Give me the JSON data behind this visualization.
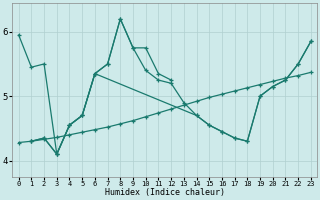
{
  "xlabel": "Humidex (Indice chaleur)",
  "bg_color": "#ceeaea",
  "line_color": "#1a7a6e",
  "grid_color": "#b0d0d0",
  "xlim": [
    -0.5,
    23.5
  ],
  "ylim": [
    3.75,
    6.45
  ],
  "yticks": [
    4,
    5,
    6
  ],
  "xticks": [
    0,
    1,
    2,
    3,
    4,
    5,
    6,
    7,
    8,
    9,
    10,
    11,
    12,
    13,
    14,
    15,
    16,
    17,
    18,
    19,
    20,
    21,
    22,
    23
  ],
  "lines": [
    {
      "x": [
        0,
        1,
        2,
        3,
        4,
        5,
        6,
        7,
        8,
        9,
        10,
        11,
        12
      ],
      "y": [
        5.95,
        5.45,
        5.5,
        4.1,
        4.55,
        4.7,
        5.35,
        5.5,
        6.2,
        5.75,
        5.75,
        5.35,
        5.25
      ]
    },
    {
      "x": [
        1,
        2,
        3,
        4,
        5,
        6,
        7,
        8,
        9,
        10,
        11,
        12,
        13,
        14,
        15,
        16,
        17,
        18,
        19,
        20,
        21,
        22,
        23
      ],
      "y": [
        4.3,
        4.35,
        4.1,
        4.55,
        4.7,
        5.35,
        5.5,
        6.2,
        5.75,
        5.4,
        5.25,
        5.2,
        4.9,
        4.7,
        4.55,
        4.45,
        4.35,
        4.3,
        5.0,
        5.15,
        5.25,
        5.5,
        5.85
      ]
    },
    {
      "x": [
        1,
        2,
        3,
        4,
        5,
        6,
        14,
        15,
        16,
        17,
        18,
        19,
        20,
        21,
        22,
        23
      ],
      "y": [
        4.3,
        4.35,
        4.1,
        4.55,
        4.7,
        5.35,
        4.7,
        4.55,
        4.45,
        4.35,
        4.3,
        5.0,
        5.15,
        5.25,
        5.5,
        5.85
      ]
    },
    {
      "x": [
        0,
        1,
        2,
        3,
        4,
        5,
        6,
        7,
        8,
        9,
        10,
        11,
        12,
        13,
        14,
        15,
        16,
        17,
        18,
        19,
        20,
        21,
        22,
        23
      ],
      "y": [
        4.28,
        4.3,
        4.33,
        4.36,
        4.4,
        4.44,
        4.48,
        4.52,
        4.57,
        4.62,
        4.68,
        4.74,
        4.8,
        4.86,
        4.92,
        4.98,
        5.03,
        5.08,
        5.13,
        5.18,
        5.23,
        5.28,
        5.32,
        5.37
      ]
    }
  ]
}
